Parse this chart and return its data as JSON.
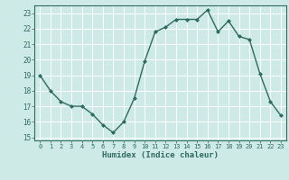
{
  "x": [
    0,
    1,
    2,
    3,
    4,
    5,
    6,
    7,
    8,
    9,
    10,
    11,
    12,
    13,
    14,
    15,
    16,
    17,
    18,
    19,
    20,
    21,
    22,
    23
  ],
  "y": [
    19,
    18,
    17.3,
    17,
    17,
    16.5,
    15.8,
    15.3,
    16,
    17.5,
    19.9,
    21.8,
    22.1,
    22.6,
    22.6,
    22.6,
    23.2,
    21.8,
    22.5,
    21.5,
    21.3,
    19.1,
    17.3,
    16.4
  ],
  "line_color": "#2e6b5e",
  "marker": "D",
  "marker_size": 2.0,
  "bg_color": "#ceeae7",
  "grid_color": "#ffffff",
  "xlabel": "Humidex (Indice chaleur)",
  "ylim": [
    14.8,
    23.5
  ],
  "yticks": [
    15,
    16,
    17,
    18,
    19,
    20,
    21,
    22,
    23
  ],
  "xticks": [
    0,
    1,
    2,
    3,
    4,
    5,
    6,
    7,
    8,
    9,
    10,
    11,
    12,
    13,
    14,
    15,
    16,
    17,
    18,
    19,
    20,
    21,
    22,
    23
  ],
  "tick_color": "#2e6b5e",
  "xlabel_color": "#2e6b5e",
  "linewidth": 1.0
}
